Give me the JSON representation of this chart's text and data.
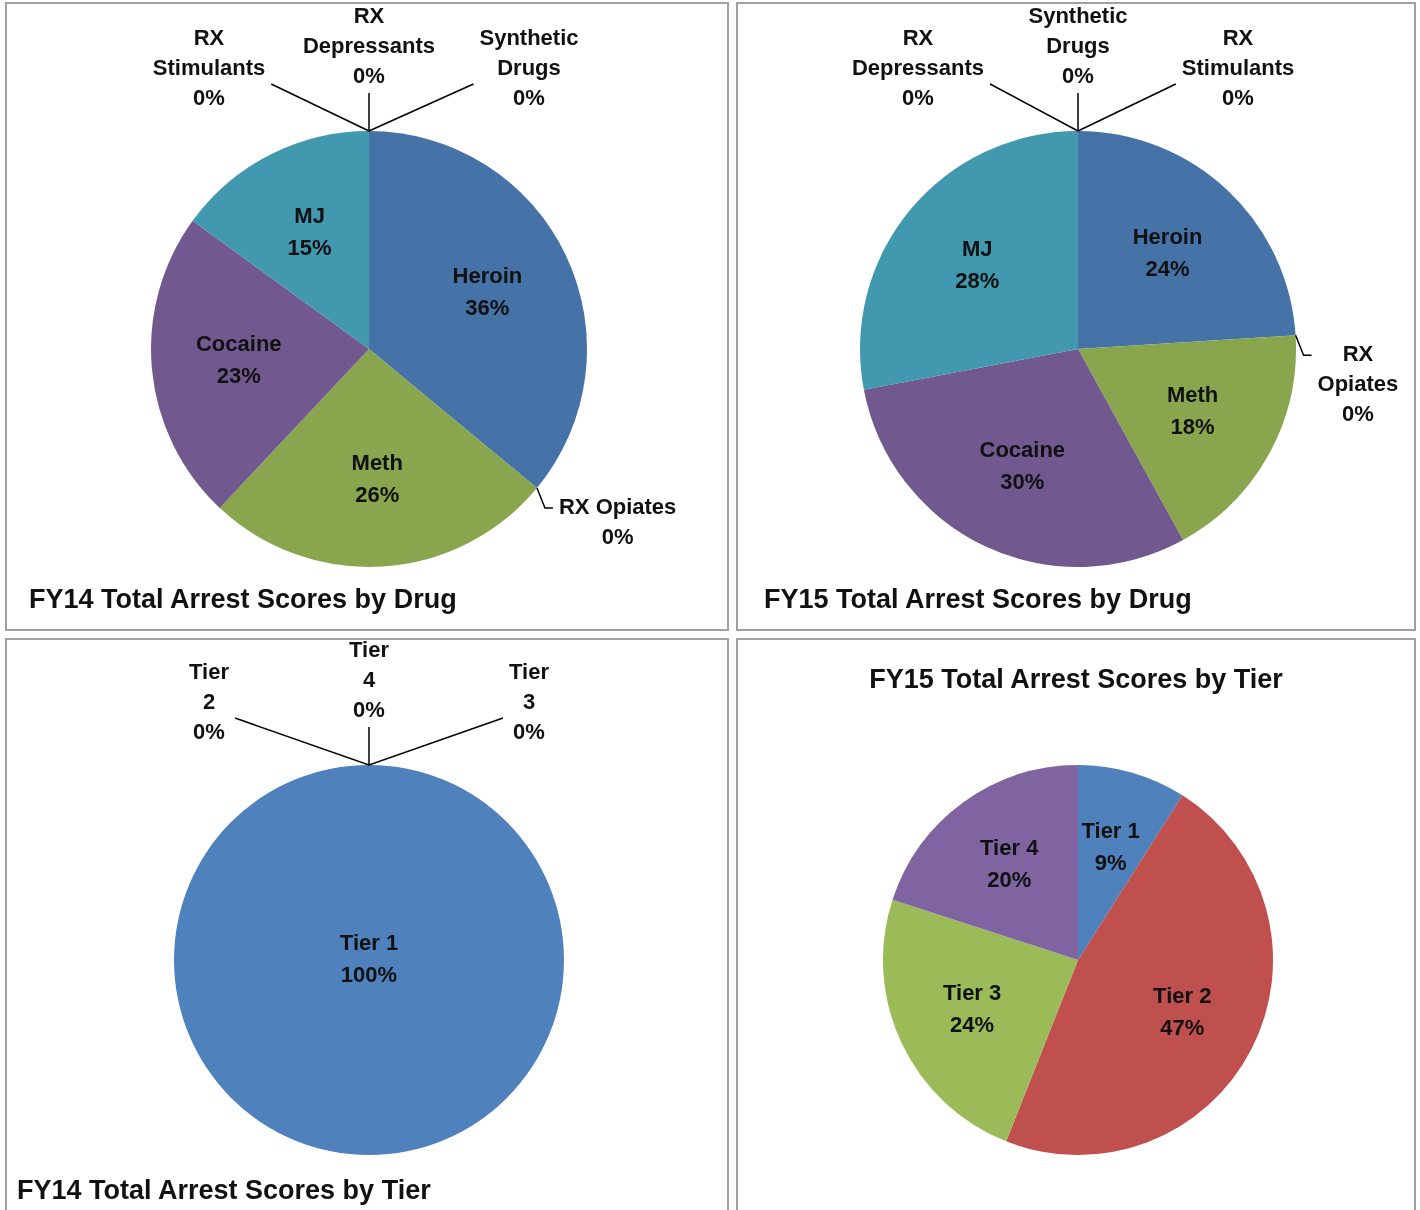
{
  "chart_data": [
    {
      "type": "pie",
      "title": "FY14 Total Arrest Scores by Drug",
      "categories": [
        "Heroin",
        "RX Opiates",
        "Meth",
        "Cocaine",
        "MJ",
        "RX Stimulants",
        "RX Depressants",
        "Synthetic Drugs"
      ],
      "values": [
        36,
        0,
        26,
        23,
        15,
        0,
        0,
        0
      ],
      "value_labels": [
        "36%",
        "0%",
        "26%",
        "23%",
        "15%",
        "0%",
        "0%",
        "0%"
      ],
      "colors": [
        "#4572a7",
        "#aa4643",
        "#89a54e",
        "#71588f",
        "#4198af",
        "#db843d",
        "#93a9cf",
        "#d19392"
      ]
    },
    {
      "type": "pie",
      "title": "FY15 Total Arrest Scores by Drug",
      "categories": [
        "Heroin",
        "RX Opiates",
        "Meth",
        "Cocaine",
        "MJ",
        "RX Depressants",
        "Synthetic Drugs",
        "RX Stimulants"
      ],
      "values": [
        24,
        0,
        18,
        30,
        28,
        0,
        0,
        0
      ],
      "value_labels": [
        "24%",
        "0%",
        "18%",
        "30%",
        "28%",
        "0%",
        "0%",
        "0%"
      ],
      "colors": [
        "#4572a7",
        "#aa4643",
        "#89a54e",
        "#71588f",
        "#4198af",
        "#93a9cf",
        "#d19392",
        "#db843d"
      ]
    },
    {
      "type": "pie",
      "title": "FY14 Total Arrest Scores by Tier",
      "categories": [
        "Tier 1",
        "Tier 2",
        "Tier 4",
        "Tier 3"
      ],
      "values": [
        100,
        0,
        0,
        0
      ],
      "value_labels": [
        "100%",
        "0%",
        "0%",
        "0%"
      ],
      "colors": [
        "#4f81bd",
        "#c0504d",
        "#8064a2",
        "#9bbb59"
      ]
    },
    {
      "type": "pie",
      "title": "FY15 Total Arrest Scores by Tier",
      "categories": [
        "Tier 1",
        "Tier 2",
        "Tier 3",
        "Tier 4"
      ],
      "values": [
        9,
        47,
        24,
        20
      ],
      "value_labels": [
        "9%",
        "47%",
        "24%",
        "20%"
      ],
      "colors": [
        "#4f81bd",
        "#c0504d",
        "#9bbb59",
        "#8064a2"
      ]
    }
  ]
}
